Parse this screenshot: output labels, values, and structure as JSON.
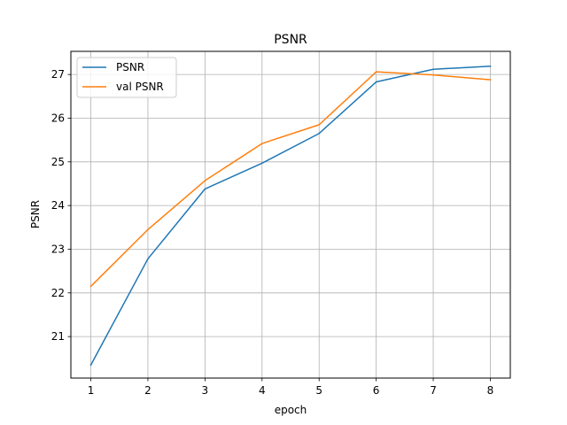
{
  "chart_data": {
    "type": "line",
    "title": "PSNR",
    "xlabel": "epoch",
    "ylabel": "PSNR",
    "x": [
      1,
      2,
      3,
      4,
      5,
      6,
      7,
      8
    ],
    "xlim": [
      0.65,
      8.35
    ],
    "ylim": [
      20.05,
      27.53
    ],
    "xticks": [
      1,
      2,
      3,
      4,
      5,
      6,
      7,
      8
    ],
    "yticks": [
      21,
      22,
      23,
      24,
      25,
      26,
      27
    ],
    "grid": true,
    "legend_position": "top-left",
    "series": [
      {
        "name": "PSNR",
        "color": "#1f77b4",
        "values": [
          20.35,
          22.78,
          24.38,
          24.97,
          25.65,
          26.83,
          27.12,
          27.19
        ]
      },
      {
        "name": "val PSNR",
        "color": "#ff7f0e",
        "values": [
          22.15,
          23.45,
          24.57,
          25.42,
          25.85,
          27.06,
          26.99,
          26.88
        ]
      }
    ]
  }
}
